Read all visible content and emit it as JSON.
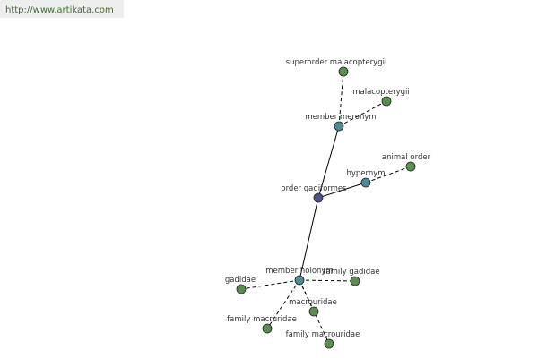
{
  "header": {
    "url": "http://www.artikata.com"
  },
  "nodes": [
    {
      "label": "superorder malacopterygii"
    },
    {
      "label": "malacopterygii"
    },
    {
      "label": "member meronym"
    },
    {
      "label": "animal order"
    },
    {
      "label": "hypernym"
    },
    {
      "label": "order gadiformes"
    },
    {
      "label": "member holonym"
    },
    {
      "label": "family gadidae"
    },
    {
      "label": "gadidae"
    },
    {
      "label": "macrouridae"
    },
    {
      "label": "family macruridae"
    },
    {
      "label": "family macrouridae"
    }
  ]
}
